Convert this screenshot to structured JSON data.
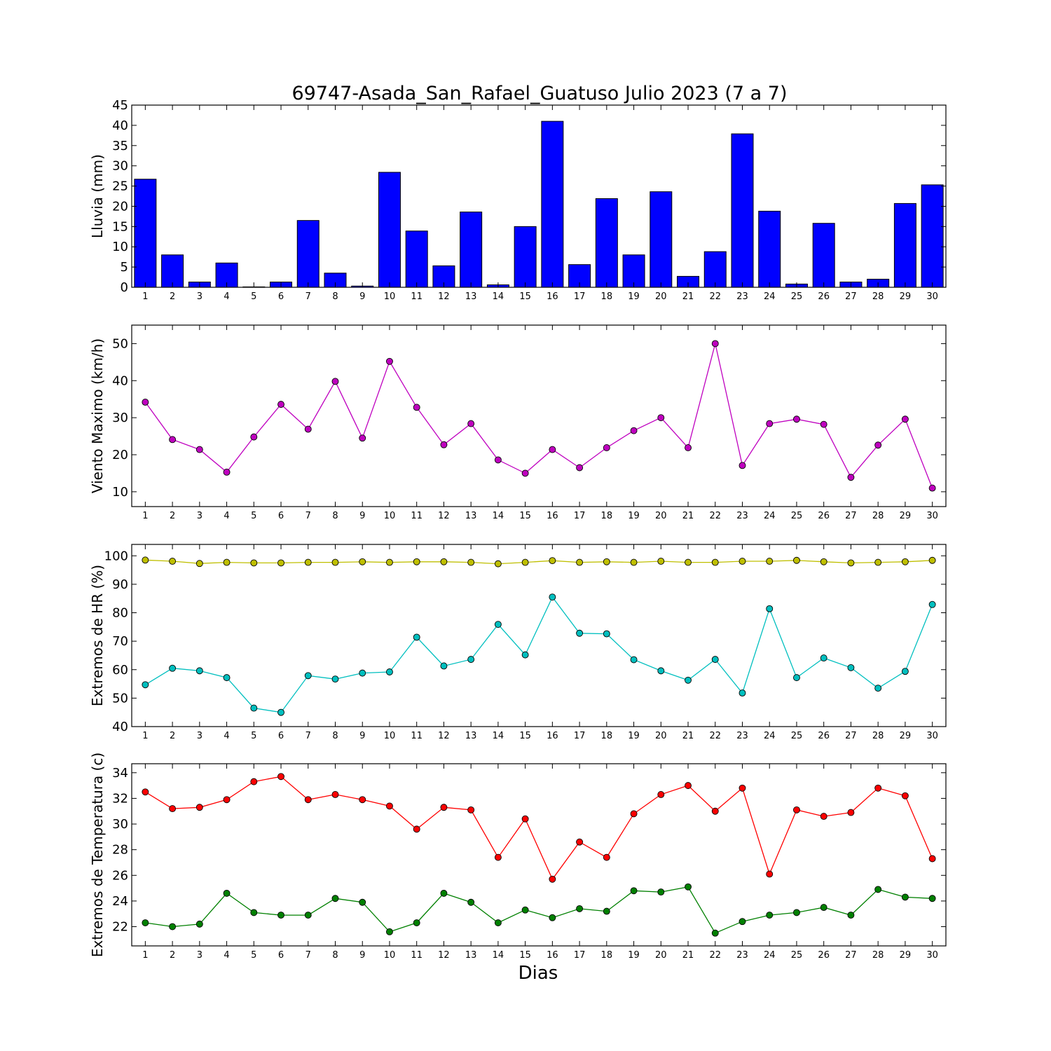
{
  "figure": {
    "title": "69747-Asada_San_Rafael_Guatuso Julio 2023  (7 a 7)",
    "xlabel": "Dias"
  },
  "chart_data": [
    {
      "type": "bar",
      "ylabel": "Lluvia (mm)",
      "ylim": [
        0,
        45
      ],
      "yticks": [
        0,
        5,
        10,
        15,
        20,
        25,
        30,
        35,
        40,
        45
      ],
      "categories": [
        "1",
        "2",
        "3",
        "4",
        "5",
        "6",
        "7",
        "8",
        "9",
        "10",
        "11",
        "12",
        "13",
        "14",
        "15",
        "16",
        "17",
        "18",
        "19",
        "20",
        "21",
        "22",
        "23",
        "24",
        "25",
        "26",
        "27",
        "28",
        "29",
        "30"
      ],
      "series": [
        {
          "color": "#0000ff",
          "values": [
            26.7,
            8.0,
            1.3,
            6.0,
            0.1,
            1.3,
            16.5,
            3.5,
            0.3,
            28.4,
            13.9,
            5.3,
            18.6,
            0.6,
            15.0,
            41.0,
            5.6,
            21.9,
            8.0,
            23.6,
            2.7,
            8.8,
            37.9,
            18.8,
            0.8,
            15.8,
            1.3,
            2.0,
            20.7,
            25.3
          ]
        }
      ]
    },
    {
      "type": "line",
      "ylabel": "Viento Maximo (km/h)",
      "ylim": [
        6,
        55
      ],
      "yticks": [
        10,
        20,
        30,
        40,
        50
      ],
      "categories": [
        "1",
        "2",
        "3",
        "4",
        "5",
        "6",
        "7",
        "8",
        "9",
        "10",
        "11",
        "12",
        "13",
        "14",
        "15",
        "16",
        "17",
        "18",
        "19",
        "20",
        "21",
        "22",
        "23",
        "24",
        "25",
        "26",
        "27",
        "28",
        "29",
        "30"
      ],
      "series": [
        {
          "color": "#bf00bf",
          "values": [
            34.2,
            24.1,
            21.4,
            15.3,
            24.8,
            33.6,
            26.9,
            39.8,
            24.5,
            45.2,
            32.8,
            22.7,
            28.4,
            18.6,
            15.0,
            21.4,
            16.5,
            21.9,
            26.5,
            30.0,
            21.9,
            50.0,
            17.1,
            28.4,
            29.6,
            28.2,
            13.9,
            22.6,
            29.6,
            11.0
          ]
        }
      ]
    },
    {
      "type": "line",
      "ylabel": "Extremos de HR (%)",
      "ylim": [
        40,
        104
      ],
      "yticks": [
        40,
        50,
        60,
        70,
        80,
        90,
        100
      ],
      "categories": [
        "1",
        "2",
        "3",
        "4",
        "5",
        "6",
        "7",
        "8",
        "9",
        "10",
        "11",
        "12",
        "13",
        "14",
        "15",
        "16",
        "17",
        "18",
        "19",
        "20",
        "21",
        "22",
        "23",
        "24",
        "25",
        "26",
        "27",
        "28",
        "29",
        "30"
      ],
      "series": [
        {
          "color": "#bfbf00",
          "values": [
            98.5,
            98.1,
            97.3,
            97.7,
            97.5,
            97.5,
            97.7,
            97.7,
            97.9,
            97.7,
            97.9,
            97.9,
            97.7,
            97.2,
            97.7,
            98.3,
            97.7,
            97.9,
            97.7,
            98.1,
            97.7,
            97.7,
            98.1,
            98.1,
            98.4,
            97.9,
            97.5,
            97.7,
            97.9,
            98.4
          ]
        },
        {
          "color": "#00bfbf",
          "values": [
            54.7,
            60.5,
            59.6,
            57.2,
            46.5,
            45.0,
            57.9,
            56.7,
            58.8,
            59.2,
            71.4,
            61.3,
            63.6,
            75.9,
            65.2,
            85.5,
            72.8,
            72.6,
            63.5,
            59.6,
            56.3,
            63.6,
            51.8,
            81.4,
            57.2,
            64.1,
            60.7,
            53.5,
            59.4,
            82.9
          ]
        }
      ]
    },
    {
      "type": "line",
      "ylabel": "Extremos de Temperatura (c)",
      "ylim": [
        20.5,
        34.7
      ],
      "yticks": [
        22,
        24,
        26,
        28,
        30,
        32,
        34
      ],
      "categories": [
        "1",
        "2",
        "3",
        "4",
        "5",
        "6",
        "7",
        "8",
        "9",
        "10",
        "11",
        "12",
        "13",
        "14",
        "15",
        "16",
        "17",
        "18",
        "19",
        "20",
        "21",
        "22",
        "23",
        "24",
        "25",
        "26",
        "27",
        "28",
        "29",
        "30"
      ],
      "series": [
        {
          "color": "#ff0000",
          "values": [
            32.5,
            31.2,
            31.3,
            31.9,
            33.3,
            33.7,
            31.9,
            32.3,
            31.9,
            31.4,
            29.6,
            31.3,
            31.1,
            27.4,
            30.4,
            25.7,
            28.6,
            27.4,
            30.8,
            32.3,
            33.0,
            31.0,
            32.8,
            26.1,
            31.1,
            30.6,
            30.9,
            32.8,
            32.2,
            27.3
          ]
        },
        {
          "color": "#008000",
          "values": [
            22.3,
            22.0,
            22.2,
            24.6,
            23.1,
            22.9,
            22.9,
            24.2,
            23.9,
            21.6,
            22.3,
            24.6,
            23.9,
            22.3,
            23.3,
            22.7,
            23.4,
            23.2,
            24.8,
            24.7,
            25.1,
            21.5,
            22.4,
            22.9,
            23.1,
            23.5,
            22.9,
            24.9,
            24.3,
            24.2
          ]
        }
      ]
    }
  ]
}
